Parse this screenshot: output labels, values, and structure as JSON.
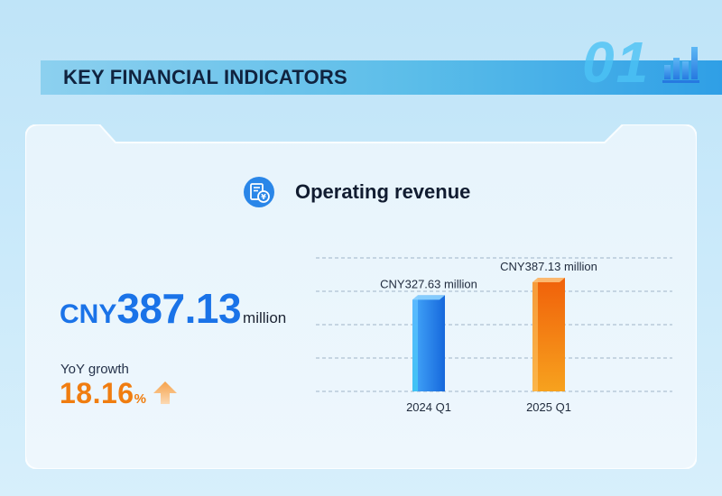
{
  "header": {
    "title": "KEY FINANCIAL INDICATORS",
    "section_number": "01",
    "icon": "bar-chart-icon"
  },
  "metric": {
    "title": "Operating revenue",
    "icon": "yuan-coins-document-icon",
    "value_currency": "CNY",
    "value": "387.13",
    "value_unit": "million",
    "yoy_label": "YoY growth",
    "yoy_value": "18.16",
    "yoy_unit": "%",
    "yoy_icon": "up-arrow-icon"
  },
  "colors": {
    "accent_blue": "#1a73e8",
    "accent_orange": "#f07d10"
  },
  "chart_data": {
    "type": "bar",
    "categories": [
      "2024 Q1",
      "2025 Q1"
    ],
    "values": [
      327.63,
      387.13
    ],
    "data_labels": [
      "CNY327.63 million",
      "CNY387.13 million"
    ],
    "bar_colors": [
      "#2a8df0",
      "#f57c0a"
    ],
    "title": "",
    "xlabel": "",
    "ylabel": "",
    "grid": true,
    "legend": "none"
  }
}
